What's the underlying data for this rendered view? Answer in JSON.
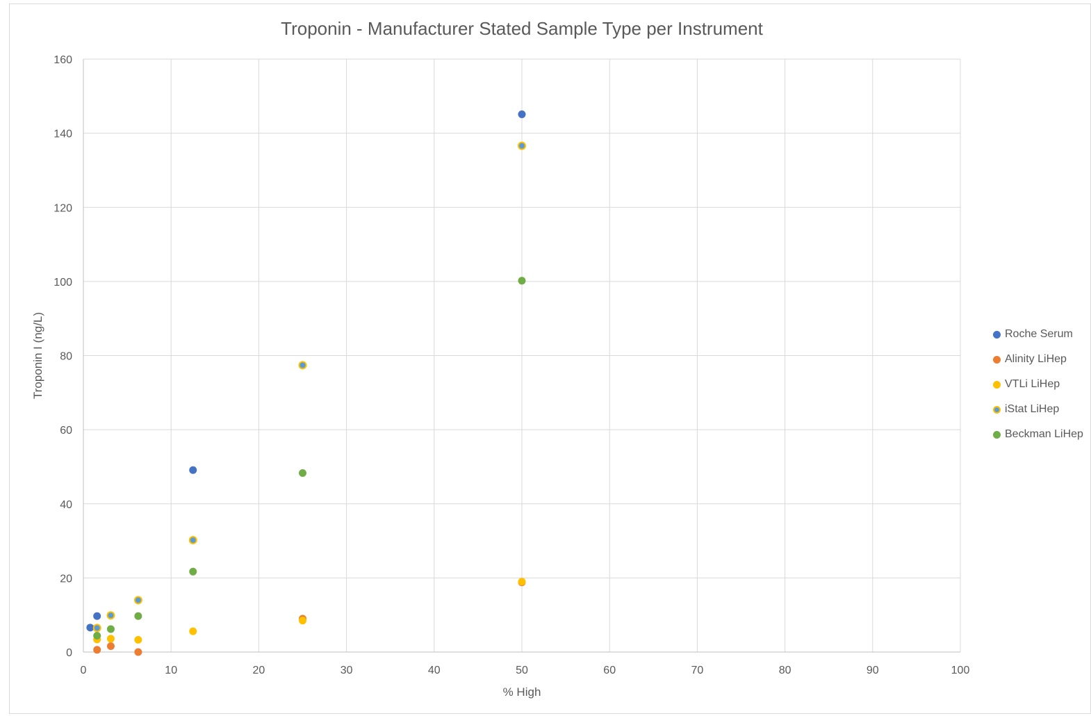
{
  "chart_data": {
    "type": "scatter",
    "title": "Troponin - Manufacturer Stated Sample Type per Instrument",
    "xlabel": "% High",
    "ylabel": "Troponin I (ng/L)",
    "xlim": [
      0,
      100
    ],
    "ylim": [
      0,
      160
    ],
    "x_ticks": [
      0,
      10,
      20,
      30,
      40,
      50,
      60,
      70,
      80,
      90,
      100
    ],
    "y_ticks": [
      0,
      20,
      40,
      60,
      80,
      100,
      120,
      140,
      160
    ],
    "grid": true,
    "legend_position": "right",
    "series": [
      {
        "name": "Roche Serum",
        "color": "#4472c4",
        "points": [
          [
            0.78,
            6.6
          ],
          [
            1.56,
            9.7
          ],
          [
            12.5,
            49.1
          ],
          [
            50,
            145.1
          ]
        ]
      },
      {
        "name": "Alinity LiHep",
        "color": "#ed7d31",
        "points": [
          [
            1.56,
            0.6
          ],
          [
            3.125,
            1.6
          ],
          [
            6.25,
            0.0
          ],
          [
            25,
            9.0
          ],
          [
            50,
            18.8
          ]
        ]
      },
      {
        "name": "VTLi LiHep",
        "color": "#ffc000",
        "points": [
          [
            1.56,
            3.4
          ],
          [
            3.125,
            3.6
          ],
          [
            6.25,
            3.3
          ],
          [
            12.5,
            5.6
          ],
          [
            25,
            8.5
          ],
          [
            50,
            19.0
          ]
        ]
      },
      {
        "name": "iStat LiHep",
        "color": "#5b9bd5",
        "border_color": "#ffc000",
        "points": [
          [
            1.56,
            6.5
          ],
          [
            3.125,
            9.9
          ],
          [
            6.25,
            14.0
          ],
          [
            12.5,
            30.2
          ],
          [
            25,
            77.4
          ],
          [
            50,
            136.6
          ]
        ]
      },
      {
        "name": "Beckman LiHep",
        "color": "#70ad47",
        "points": [
          [
            1.56,
            4.4
          ],
          [
            3.125,
            6.2
          ],
          [
            6.25,
            9.7
          ],
          [
            12.5,
            21.7
          ],
          [
            25,
            48.3
          ],
          [
            50,
            100.2
          ]
        ]
      }
    ]
  }
}
